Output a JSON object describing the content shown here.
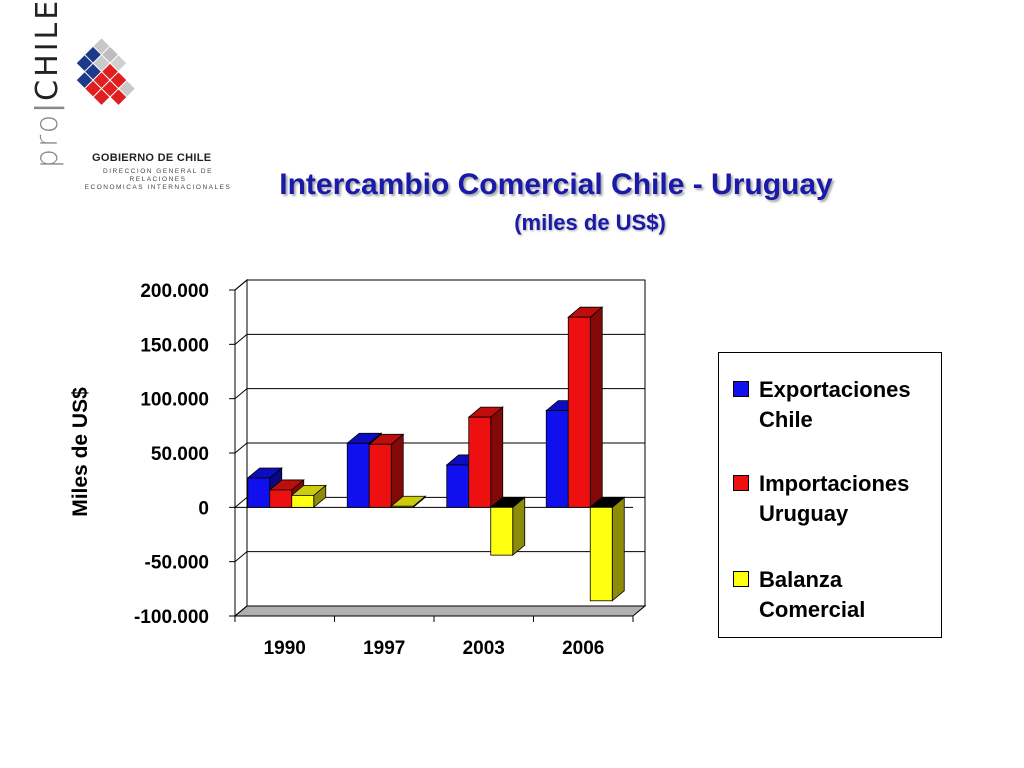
{
  "logo": {
    "pro": "pro",
    "chile": "CHILE",
    "gobierno": "GOBIERNO DE CHILE",
    "direccion_line1": "DIRECCION GENERAL DE RELACIONES",
    "direccion_line2": "ECONOMICAS INTERNACIONALES"
  },
  "colors": {
    "title": "#1a1aa8",
    "exportaciones": "#1010ee",
    "importaciones": "#ee1010",
    "balanza": "#ffff10"
  },
  "chart_data": {
    "type": "bar",
    "title": "Intercambio Comercial Chile - Uruguay",
    "subtitle": "(miles de US$)",
    "ylabel": "Miles de US$",
    "xlabel": "",
    "categories": [
      "1990",
      "1997",
      "2003",
      "2006"
    ],
    "ylim": [
      -100000,
      200000
    ],
    "yticks": [
      200000,
      150000,
      100000,
      50000,
      0,
      -50000,
      -100000
    ],
    "ytick_labels": [
      "200.000",
      "150.000",
      "100.000",
      "50.000",
      "0",
      "-50.000",
      "-100.000"
    ],
    "grid": true,
    "three_d": true,
    "legend_position": "right",
    "series": [
      {
        "name_line1": "Exportaciones",
        "name_line2": "Chile",
        "color": "#1010ee",
        "values": [
          27000,
          59000,
          39000,
          89000
        ]
      },
      {
        "name_line1": "Importaciones",
        "name_line2": "Uruguay",
        "color": "#ee1010",
        "values": [
          16000,
          58000,
          83000,
          175000
        ]
      },
      {
        "name_line1": "Balanza",
        "name_line2": "Comercial",
        "color": "#ffff10",
        "values": [
          11000,
          1000,
          -44000,
          -86000
        ]
      }
    ]
  }
}
